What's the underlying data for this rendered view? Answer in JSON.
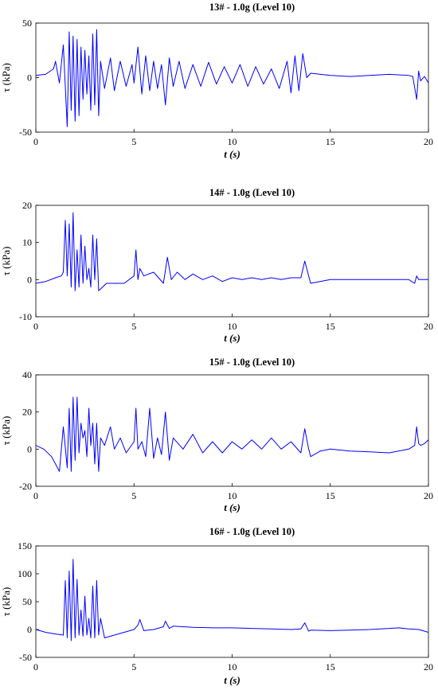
{
  "colors": {
    "series": "#0000ff",
    "axis": "#000000",
    "background": "#ffffff"
  },
  "chart_data": [
    {
      "type": "line",
      "title": "13# - 1.0g (Level 10)",
      "xlabel": "t (s)",
      "ylabel": "τ (kPa)",
      "xlim": [
        0,
        20
      ],
      "ylim": [
        -50,
        50
      ],
      "xticks": [
        0,
        5,
        10,
        15,
        20
      ],
      "yticks": [
        -50,
        0,
        50
      ],
      "grid": false,
      "legend": "none",
      "series": [
        {
          "x": [
            0,
            0.5,
            0.9,
            1.0,
            1.2,
            1.4,
            1.6,
            1.7,
            1.8,
            1.9,
            2.0,
            2.1,
            2.2,
            2.3,
            2.4,
            2.5,
            2.6,
            2.7,
            2.8,
            2.9,
            3.0,
            3.1,
            3.2,
            3.3,
            3.5,
            3.8,
            4.0,
            4.3,
            4.6,
            4.9,
            5.0,
            5.2,
            5.4,
            5.6,
            5.8,
            6.0,
            6.2,
            6.4,
            6.6,
            6.8,
            7.0,
            7.3,
            7.6,
            8.0,
            8.4,
            8.8,
            9.2,
            9.6,
            10.0,
            10.4,
            10.8,
            11.2,
            11.6,
            12.0,
            12.4,
            12.8,
            13.0,
            13.2,
            13.4,
            13.6,
            13.8,
            14.0,
            14.5,
            15.0,
            16.0,
            17.0,
            18.0,
            19.0,
            19.2,
            19.4,
            19.5,
            19.6,
            19.8,
            20.0
          ],
          "y": [
            2,
            3,
            8,
            15,
            -5,
            30,
            -45,
            42,
            -30,
            38,
            -40,
            35,
            -35,
            28,
            -20,
            25,
            -15,
            20,
            -30,
            40,
            -25,
            44,
            -35,
            15,
            -10,
            18,
            -12,
            15,
            -8,
            12,
            -5,
            28,
            -15,
            20,
            -12,
            15,
            -10,
            12,
            -25,
            18,
            -8,
            15,
            -10,
            12,
            -8,
            14,
            -6,
            10,
            -5,
            12,
            -8,
            10,
            -6,
            8,
            -10,
            15,
            -14,
            20,
            -12,
            22,
            0,
            4,
            3,
            2,
            1,
            2,
            3,
            2,
            1,
            -20,
            6,
            -3,
            1,
            -5
          ]
        }
      ]
    },
    {
      "type": "line",
      "title": "14# - 1.0g (Level 10)",
      "xlabel": "t (s)",
      "ylabel": "τ (kPa)",
      "xlim": [
        0,
        20
      ],
      "ylim": [
        -10,
        20
      ],
      "xticks": [
        0,
        5,
        10,
        15,
        20
      ],
      "yticks": [
        -10,
        0,
        10,
        20
      ],
      "grid": false,
      "legend": "none",
      "series": [
        {
          "x": [
            0,
            0.5,
            1.0,
            1.3,
            1.4,
            1.5,
            1.6,
            1.7,
            1.8,
            1.9,
            2.0,
            2.1,
            2.2,
            2.3,
            2.4,
            2.5,
            2.6,
            2.7,
            2.8,
            2.9,
            3.0,
            3.1,
            3.2,
            3.4,
            3.6,
            3.8,
            4.0,
            4.5,
            5.0,
            5.1,
            5.2,
            5.3,
            5.5,
            6.0,
            6.5,
            6.7,
            6.9,
            7.2,
            7.6,
            8.0,
            8.5,
            9.0,
            9.5,
            10.0,
            10.5,
            11.0,
            11.5,
            12.0,
            12.5,
            13.0,
            13.5,
            13.7,
            13.9,
            14.0,
            15.0,
            16.0,
            17.0,
            18.0,
            19.0,
            19.3,
            19.4,
            19.5,
            20.0
          ],
          "y": [
            -1,
            -0.5,
            0.5,
            1,
            2,
            16,
            1,
            15,
            -2,
            18,
            -3,
            8,
            -2,
            12,
            -1,
            9,
            0,
            3,
            -2,
            12,
            0,
            11,
            -3,
            -2,
            -1,
            -1,
            -1,
            -1,
            1,
            8,
            0,
            3,
            1,
            2,
            -1,
            6,
            0,
            2,
            0,
            1.5,
            0,
            1,
            -0.5,
            0.5,
            0,
            0.5,
            0,
            0.5,
            0,
            0.5,
            0.5,
            5,
            1,
            -1,
            0,
            0,
            0,
            0,
            0,
            -1,
            1,
            0,
            0
          ]
        }
      ]
    },
    {
      "type": "line",
      "title": "15# - 1.0g (Level 10)",
      "xlabel": "t (s)",
      "ylabel": "τ (kPa)",
      "xlim": [
        0,
        20
      ],
      "ylim": [
        -20,
        40
      ],
      "xticks": [
        0,
        5,
        10,
        15,
        20
      ],
      "yticks": [
        -20,
        0,
        20,
        40
      ],
      "grid": false,
      "legend": "none",
      "series": [
        {
          "x": [
            0,
            0.4,
            0.8,
            1.0,
            1.2,
            1.4,
            1.6,
            1.7,
            1.8,
            1.9,
            2.0,
            2.1,
            2.2,
            2.3,
            2.4,
            2.5,
            2.6,
            2.7,
            2.8,
            2.9,
            3.0,
            3.1,
            3.2,
            3.3,
            3.5,
            3.8,
            4.0,
            4.3,
            4.6,
            5.0,
            5.1,
            5.2,
            5.4,
            5.6,
            5.8,
            6.0,
            6.2,
            6.4,
            6.6,
            6.8,
            7.0,
            7.5,
            8.0,
            8.5,
            9.0,
            9.5,
            10.0,
            10.5,
            11.0,
            11.5,
            12.0,
            12.5,
            13.0,
            13.5,
            13.7,
            13.9,
            14.0,
            14.5,
            15.0,
            16.0,
            17.0,
            18.0,
            19.0,
            19.3,
            19.4,
            19.5,
            19.6,
            19.8,
            20.0
          ],
          "y": [
            2,
            0,
            -4,
            -8,
            -12,
            12,
            -10,
            22,
            -12,
            28,
            -6,
            28,
            -2,
            14,
            6,
            10,
            -4,
            22,
            2,
            14,
            -8,
            14,
            -12,
            6,
            2,
            12,
            0,
            6,
            -2,
            4,
            22,
            0,
            4,
            -4,
            22,
            -5,
            6,
            -3,
            20,
            -6,
            6,
            0,
            8,
            -2,
            4,
            -2,
            4,
            0,
            5,
            0,
            6,
            0,
            4,
            -2,
            11,
            0,
            -4,
            -1,
            0,
            -1,
            -1.5,
            -2,
            0,
            2,
            12,
            3,
            2,
            3,
            5
          ]
        }
      ]
    },
    {
      "type": "line",
      "title": "16# - 1.0g (Level 10)",
      "xlabel": "t (s)",
      "ylabel": "τ (kPa)",
      "xlim": [
        0,
        20
      ],
      "ylim": [
        -50,
        150
      ],
      "xticks": [
        0,
        5,
        10,
        15,
        20
      ],
      "yticks": [
        -50,
        0,
        50,
        100,
        150
      ],
      "grid": false,
      "legend": "none",
      "series": [
        {
          "x": [
            0,
            0.5,
            1.0,
            1.4,
            1.5,
            1.6,
            1.7,
            1.8,
            1.9,
            2.0,
            2.1,
            2.2,
            2.3,
            2.4,
            2.5,
            2.6,
            2.7,
            2.8,
            2.9,
            3.0,
            3.1,
            3.2,
            3.3,
            3.5,
            4.0,
            4.5,
            5.0,
            5.2,
            5.3,
            5.5,
            6.0,
            6.5,
            6.6,
            6.8,
            7.0,
            8.0,
            9.0,
            10.0,
            11.0,
            12.0,
            13.0,
            13.5,
            13.7,
            13.9,
            14.0,
            15.0,
            16.0,
            17.0,
            18.0,
            18.5,
            19.0,
            19.5,
            20.0
          ],
          "y": [
            0,
            -5,
            -8,
            -10,
            88,
            -15,
            105,
            -20,
            126,
            -15,
            90,
            -10,
            35,
            -12,
            60,
            -10,
            20,
            -15,
            78,
            -15,
            88,
            -10,
            20,
            -15,
            -10,
            -5,
            0,
            8,
            18,
            -2,
            0,
            5,
            15,
            2,
            6,
            4,
            3,
            3,
            2,
            1,
            0,
            1,
            12,
            -3,
            -1,
            -2,
            -1,
            0,
            2,
            3,
            1,
            0,
            -5
          ]
        }
      ]
    }
  ]
}
